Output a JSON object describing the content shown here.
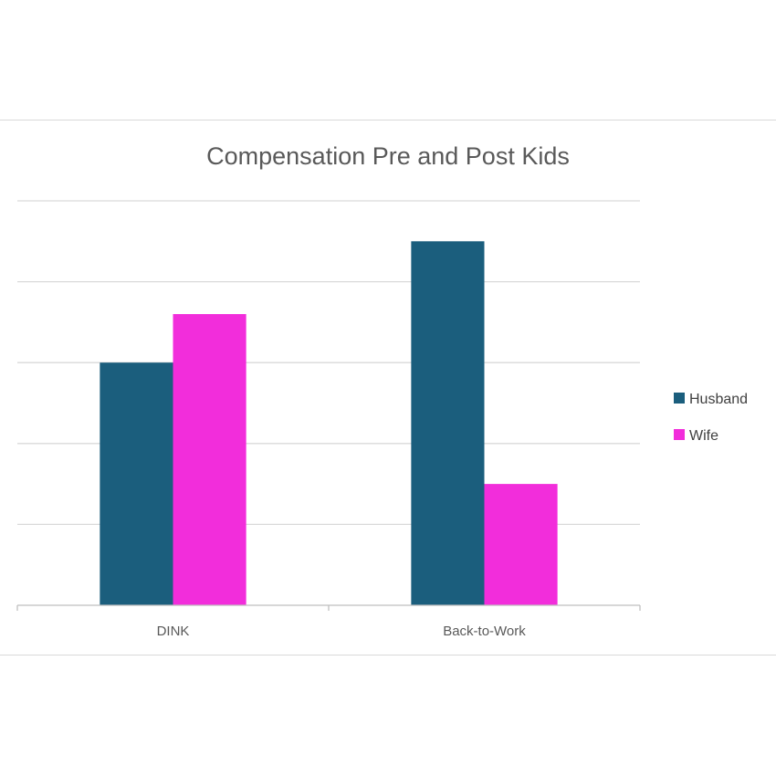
{
  "chart_data": {
    "type": "bar",
    "title": "Compensation Pre and Post Kids",
    "categories": [
      "DINK",
      "Back-to-Work"
    ],
    "series": [
      {
        "name": "Husband",
        "values": [
          3.0,
          4.5
        ],
        "color": "#1b5e7d"
      },
      {
        "name": "Wife",
        "values": [
          3.6,
          1.5
        ],
        "color": "#f22ddb"
      }
    ],
    "ylim": [
      0,
      5
    ],
    "gridlines": 5,
    "y_tick_labels": false,
    "grid": true,
    "legend_position": "right"
  }
}
